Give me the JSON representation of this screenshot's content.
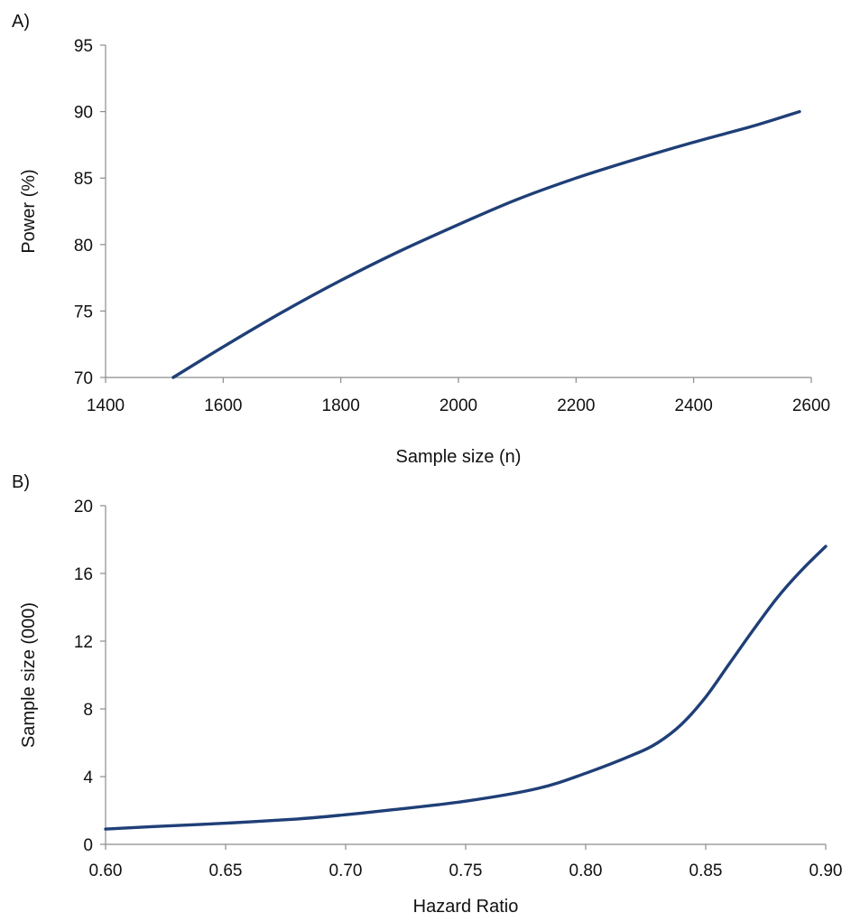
{
  "colors": {
    "line": "#1F3F77",
    "axis": "#8C8C8C",
    "text": "#111111"
  },
  "chart_data": [
    {
      "panel_label": "A)",
      "type": "line",
      "xlabel": "Sample size (n)",
      "ylabel": "Power (%)",
      "xlim": [
        1400,
        2600
      ],
      "ylim": [
        70,
        95
      ],
      "xticks": [
        1400,
        1600,
        1800,
        2000,
        2200,
        2400,
        2600
      ],
      "yticks": [
        70,
        75,
        80,
        85,
        90,
        95
      ],
      "x_tick_labels": [
        "1400",
        "1600",
        "1800",
        "2000",
        "2200",
        "2400",
        "2600"
      ],
      "y_tick_labels": [
        "70",
        "75",
        "80",
        "85",
        "90",
        "95"
      ],
      "series": [
        {
          "x": [
            1515,
            1600,
            1700,
            1800,
            1900,
            2000,
            2100,
            2200,
            2300,
            2400,
            2500,
            2580
          ],
          "y": [
            70.0,
            72.3,
            74.9,
            77.3,
            79.5,
            81.5,
            83.4,
            85.0,
            86.4,
            87.7,
            88.9,
            90.0
          ]
        }
      ]
    },
    {
      "panel_label": "B)",
      "type": "line",
      "xlabel": "Hazard Ratio",
      "ylabel": "Sample size (000)",
      "xlim": [
        0.6,
        0.9
      ],
      "ylim": [
        0,
        20
      ],
      "xticks": [
        0.6,
        0.65,
        0.7,
        0.75,
        0.8,
        0.85,
        0.9
      ],
      "yticks": [
        0,
        4,
        8,
        12,
        16,
        20
      ],
      "x_tick_labels": [
        "0.60",
        "0.65",
        "0.70",
        "0.75",
        "0.80",
        "0.85",
        "0.90"
      ],
      "y_tick_labels": [
        "0",
        "4",
        "8",
        "12",
        "16",
        "20"
      ],
      "series": [
        {
          "x": [
            0.6,
            0.62,
            0.65,
            0.68,
            0.7,
            0.72,
            0.75,
            0.78,
            0.8,
            0.82,
            0.83,
            0.84,
            0.85,
            0.86,
            0.87,
            0.88,
            0.89,
            0.9
          ],
          "y": [
            0.9,
            1.05,
            1.25,
            1.5,
            1.75,
            2.05,
            2.55,
            3.3,
            4.2,
            5.3,
            6.0,
            7.1,
            8.7,
            10.7,
            12.7,
            14.6,
            16.2,
            17.6
          ]
        }
      ]
    }
  ]
}
